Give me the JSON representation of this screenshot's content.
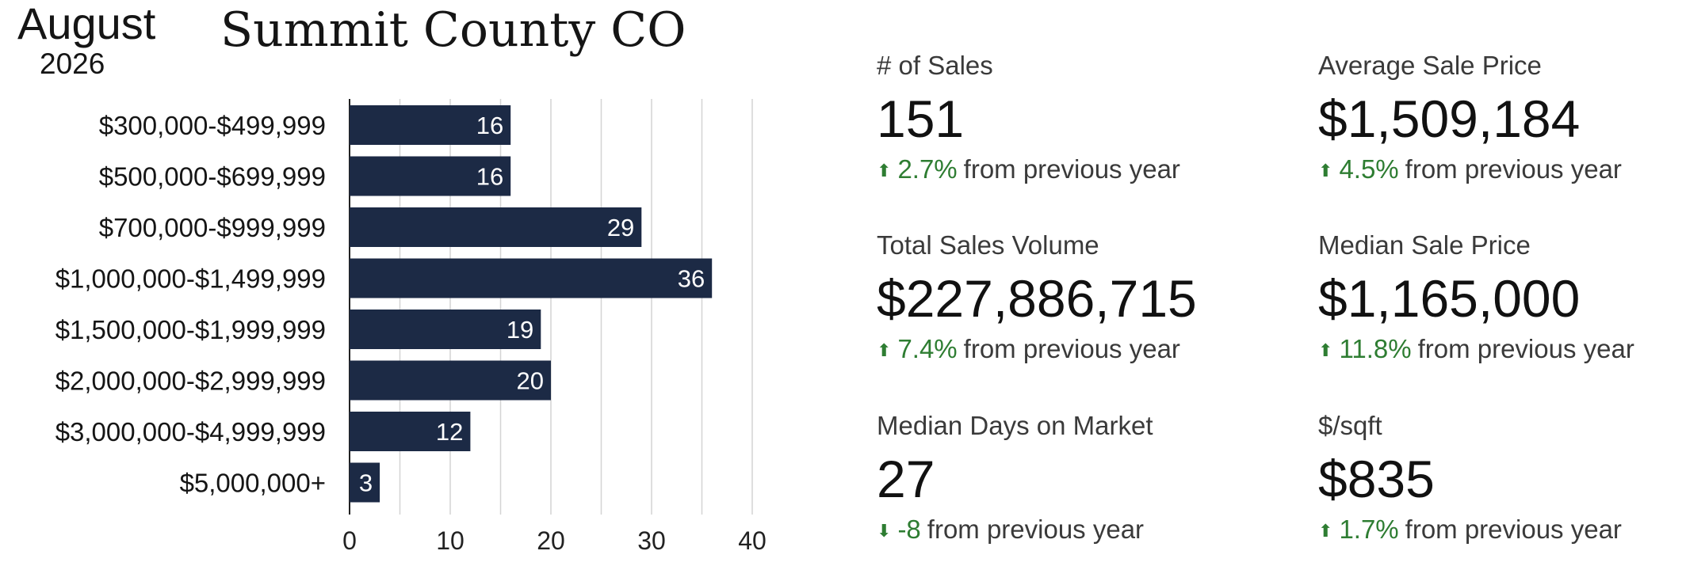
{
  "header": {
    "month": "August",
    "year": "2026",
    "region": "Summit County CO"
  },
  "colors": {
    "bar": "#1c2a45",
    "bar_label": "#ffffff",
    "grid": "#d4d4d4",
    "up": "#2e7d32",
    "down": "#2e7d32"
  },
  "chart_data": {
    "type": "bar",
    "orientation": "horizontal",
    "categories": [
      "$300,000-$499,999",
      "$500,000-$699,999",
      "$700,000-$999,999",
      "$1,000,000-$1,499,999",
      "$1,500,000-$1,999,999",
      "$2,000,000-$2,999,999",
      "$3,000,000-$4,999,999",
      "$5,000,000+"
    ],
    "values": [
      16,
      16,
      29,
      36,
      19,
      20,
      12,
      3
    ],
    "xlim": [
      0,
      40
    ],
    "xticks": [
      0,
      10,
      20,
      30,
      40
    ],
    "grid": "vertical",
    "data_labels": true
  },
  "stats": [
    {
      "label": "# of Sales",
      "value": "151",
      "direction": "up",
      "change": "2.7%",
      "suffix": "from previous year"
    },
    {
      "label": "Average Sale Price",
      "value": "$1,509,184",
      "direction": "up",
      "change": "4.5%",
      "suffix": "from previous year"
    },
    {
      "label": "Total Sales Volume",
      "value": "$227,886,715",
      "direction": "up",
      "change": "7.4%",
      "suffix": "from previous year"
    },
    {
      "label": "Median Sale Price",
      "value": "$1,165,000",
      "direction": "up",
      "change": "11.8%",
      "suffix": "from previous year"
    },
    {
      "label": "Median Days on Market",
      "value": "27",
      "direction": "down",
      "change": "-8",
      "suffix": "from previous year"
    },
    {
      "label": "$/sqft",
      "value": "$835",
      "direction": "up",
      "change": "1.7%",
      "suffix": "from previous year"
    }
  ]
}
